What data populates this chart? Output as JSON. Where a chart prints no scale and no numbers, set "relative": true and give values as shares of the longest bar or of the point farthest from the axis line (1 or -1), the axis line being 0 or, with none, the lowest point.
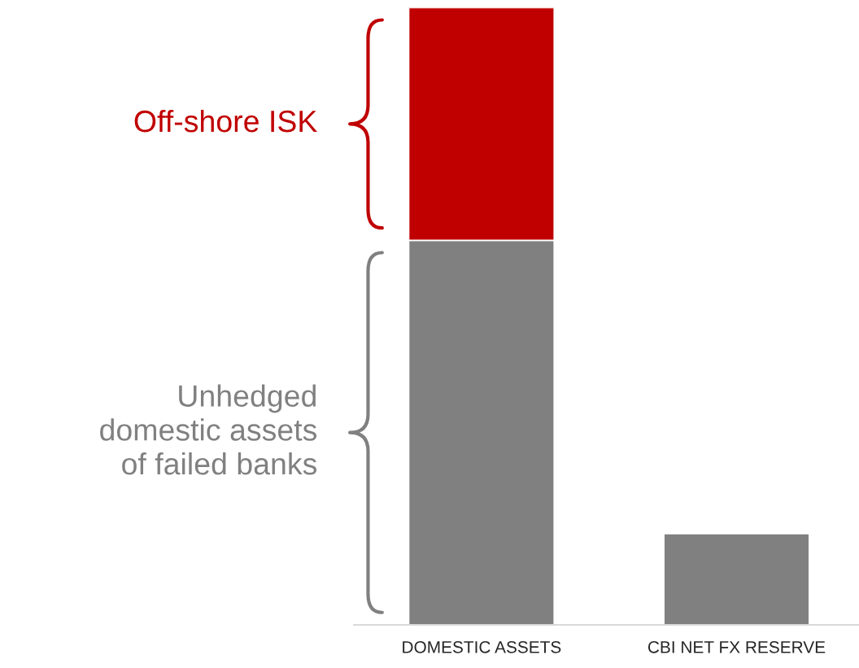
{
  "chart_data": {
    "type": "bar",
    "stacked": true,
    "relative": true,
    "legend": false,
    "categories": [
      "DOMESTIC ASSETS",
      "CBI NET FX RESERVE"
    ],
    "series": [
      {
        "name": "Unhedged\ndomestic assets\nof failed banks",
        "color": "#808080",
        "values": [
          0.623,
          0.148
        ]
      },
      {
        "name": "Off-shore ISK",
        "color": "#c00000",
        "values": [
          0.377,
          null
        ]
      }
    ]
  }
}
